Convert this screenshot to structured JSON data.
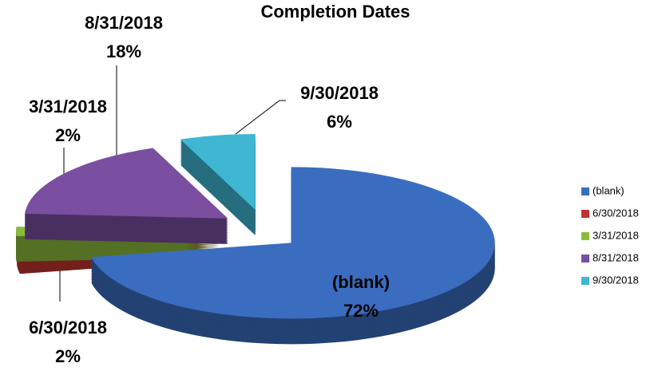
{
  "chart_data": {
    "type": "pie",
    "title": "Completion Dates",
    "categories": [
      "(blank)",
      "6/30/2018",
      "3/31/2018",
      "8/31/2018",
      "9/30/2018"
    ],
    "values": [
      72,
      2,
      2,
      18,
      6
    ],
    "value_labels": [
      "72%",
      "2%",
      "2%",
      "18%",
      "6%"
    ],
    "colors": [
      "#3a6dbf",
      "#c0332d",
      "#8cbb3c",
      "#7a4ea0",
      "#3fb6d2"
    ],
    "legend": "right"
  }
}
